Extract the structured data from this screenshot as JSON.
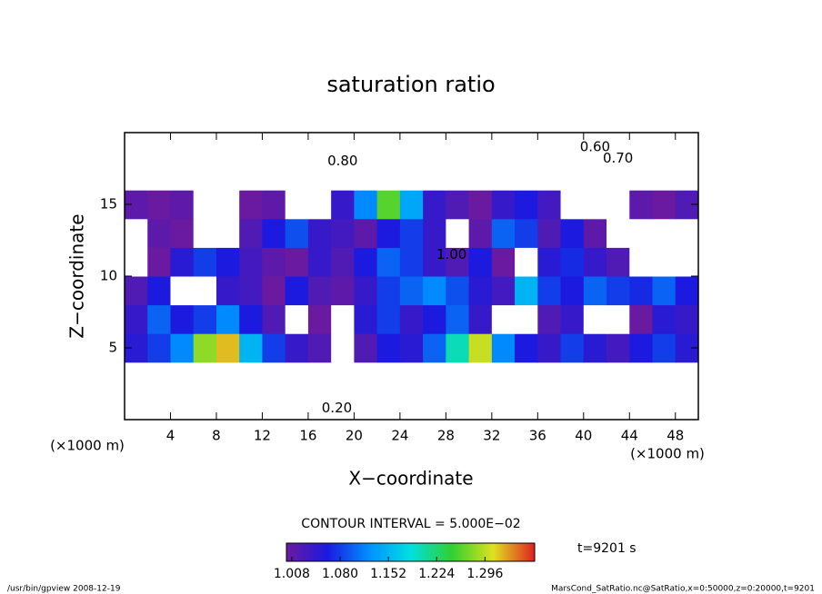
{
  "chart_data": {
    "type": "heatmap",
    "title": "saturation ratio",
    "xlabel": "X−coordinate",
    "ylabel": "Z−coordinate",
    "x_unit": "(×1000 m)",
    "y_unit": "(×1000 m)",
    "contour_interval": "CONTOUR INTERVAL = 5.000E−02",
    "time_label": "t=9201 s",
    "footer_left": "/usr/bin/gpview   2008-12-19",
    "footer_right": "MarsCond_SatRatio.nc@SatRatio,x=0:50000,z=0:20000,t=9201",
    "xlim": [
      0,
      50
    ],
    "ylim": [
      0,
      20
    ],
    "xticks": [
      4,
      8,
      12,
      16,
      20,
      24,
      28,
      32,
      36,
      40,
      44,
      48
    ],
    "yticks": [
      5,
      10,
      15
    ],
    "x": [
      1,
      3,
      5,
      7,
      9,
      11,
      13,
      15,
      17,
      19,
      21,
      23,
      25,
      27,
      29,
      31,
      33,
      35,
      37,
      39,
      41,
      43,
      45,
      47,
      49
    ],
    "y": [
      1,
      3,
      5,
      7,
      9,
      11,
      13,
      15,
      17,
      19
    ],
    "z": [
      [
        0.3,
        0.3,
        0.3,
        0.3,
        0.3,
        0.3,
        0.3,
        0.3,
        0.3,
        0.3,
        0.3,
        0.3,
        0.3,
        0.3,
        0.3,
        0.3,
        0.3,
        0.3,
        0.3,
        0.3,
        0.3,
        0.3,
        0.3,
        0.3,
        0.3
      ],
      [
        0.6,
        0.6,
        0.6,
        0.6,
        0.6,
        0.6,
        0.6,
        0.6,
        0.6,
        0.6,
        0.6,
        0.6,
        0.6,
        0.6,
        0.6,
        0.6,
        0.6,
        0.6,
        0.6,
        0.6,
        0.6,
        0.6,
        0.6,
        0.6,
        0.6
      ],
      [
        1.05,
        1.08,
        1.12,
        1.28,
        1.32,
        1.15,
        1.08,
        1.04,
        1.02,
        0.98,
        1.02,
        1.06,
        1.05,
        1.1,
        1.2,
        1.3,
        1.12,
        1.06,
        1.04,
        1.08,
        1.05,
        1.03,
        1.06,
        1.08,
        1.05
      ],
      [
        1.04,
        1.1,
        1.06,
        1.08,
        1.12,
        1.06,
        1.02,
        0.97,
        1.0,
        0.96,
        1.05,
        1.08,
        1.04,
        1.06,
        1.1,
        1.04,
        0.98,
        0.96,
        1.02,
        1.04,
        0.95,
        0.96,
        1.0,
        1.05,
        1.04
      ],
      [
        1.02,
        1.06,
        0.98,
        0.97,
        1.04,
        1.03,
        1.0,
        1.06,
        1.02,
        1.01,
        1.04,
        1.08,
        1.1,
        1.12,
        1.09,
        1.05,
        1.03,
        1.15,
        1.08,
        1.06,
        1.1,
        1.08,
        1.07,
        1.1,
        1.06
      ],
      [
        0.97,
        1.0,
        1.05,
        1.08,
        1.06,
        1.03,
        1.01,
        1.0,
        1.04,
        1.02,
        1.06,
        1.1,
        1.08,
        1.04,
        1.02,
        1.06,
        1.0,
        0.99,
        1.05,
        1.07,
        1.04,
        1.02,
        0.98,
        0.96,
        0.97
      ],
      [
        0.98,
        1.01,
        1.0,
        0.96,
        0.97,
        1.02,
        1.06,
        1.09,
        1.04,
        1.03,
        1.01,
        1.06,
        1.08,
        1.04,
        0.98,
        1.01,
        1.1,
        1.08,
        1.02,
        1.06,
        1.01,
        0.97,
        0.96,
        0.95,
        0.97
      ],
      [
        1.01,
        1.0,
        1.01,
        0.95,
        0.94,
        1.0,
        1.01,
        0.95,
        0.94,
        1.04,
        1.12,
        1.26,
        1.14,
        1.04,
        1.02,
        1.0,
        1.04,
        1.06,
        1.03,
        0.97,
        0.98,
        0.96,
        1.01,
        1.0,
        1.02
      ],
      [
        0.85,
        0.86,
        0.88,
        0.85,
        0.86,
        0.84,
        0.85,
        0.83,
        0.84,
        0.86,
        0.85,
        0.83,
        0.82,
        0.85,
        0.84,
        0.86,
        0.85,
        0.86,
        0.87,
        0.85,
        0.84,
        0.86,
        0.85,
        0.85,
        0.84
      ],
      [
        0.7,
        0.7,
        0.7,
        0.7,
        0.7,
        0.7,
        0.7,
        0.7,
        0.7,
        0.7,
        0.7,
        0.7,
        0.7,
        0.7,
        0.7,
        0.7,
        0.7,
        0.7,
        0.7,
        0.7,
        0.7,
        0.7,
        0.7,
        0.7,
        0.7
      ]
    ],
    "clim": [
      1.0,
      1.37
    ],
    "colors": [
      "#6a1aa0",
      "#1a1ae0",
      "#0090ff",
      "#00e0e0",
      "#30d030",
      "#e0e020",
      "#e02020"
    ],
    "cticks": [
      1.008,
      {
        "value": 1.08,
        "label": "1.080"
      },
      1.152,
      1.224,
      1.296
    ],
    "annotations": [
      {
        "text": "0.80",
        "x": 19,
        "y": 18
      },
      {
        "text": "0.60",
        "x": 41,
        "y": 19
      },
      {
        "text": "0.70",
        "x": 43,
        "y": 18.2
      },
      {
        "text": "1.00",
        "x": 28.5,
        "y": 11.5
      },
      {
        "text": "0.20",
        "x": 18.5,
        "y": 0.8
      }
    ]
  }
}
